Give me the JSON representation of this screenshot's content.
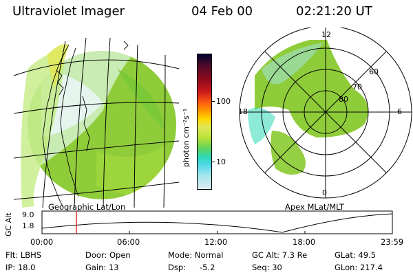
{
  "header": {
    "instrument": "Ultraviolet Imager",
    "date": "04 Feb 00",
    "time": "02:21:20 UT"
  },
  "colorbar": {
    "title": "photon cm⁻²s⁻¹",
    "ticks": [
      "100",
      "10"
    ],
    "scale": "log",
    "colors": [
      "#000030",
      "#4b0a2a",
      "#8b0a1e",
      "#cc1a1a",
      "#ff5f10",
      "#ff9a00",
      "#ffd700",
      "#e0e85a",
      "#b9e337",
      "#5fd35f",
      "#2fd9b6",
      "#4fd8e8",
      "#a5e6ec",
      "#dcecee"
    ]
  },
  "left_panel": {
    "caption": "Geographic Lat/Lon",
    "map_color": "#8fcc3a"
  },
  "right_panel": {
    "caption": "Apex  MLat/MLT",
    "mlt_labels": {
      "top": "12",
      "left": "18",
      "right": "6",
      "bottom": "0"
    },
    "mlat_labels": [
      "60",
      "70",
      "80"
    ]
  },
  "orbit": {
    "y_label": "GC Alt",
    "y_ticks": [
      "9.0",
      "1.8"
    ],
    "x_ticks": [
      "00:00",
      "06:00",
      "12:00",
      "18:00",
      "23:59"
    ],
    "marker_time_fraction": 0.0981,
    "marker_color": "#d41c1c"
  },
  "status": {
    "filter": "Flt: LBHS",
    "ip": "IP: 18.0",
    "door": "Door: Open",
    "gain": "Gain: 13",
    "mode": "Mode: Normal",
    "dsp_label": "Dsp:",
    "dsp_value": "-5.2",
    "gc_alt": "GC Alt: 7.3 Re",
    "seq": "Seq: 30",
    "glat": "GLat:  49.5",
    "glon": "GLon: 217.4"
  }
}
